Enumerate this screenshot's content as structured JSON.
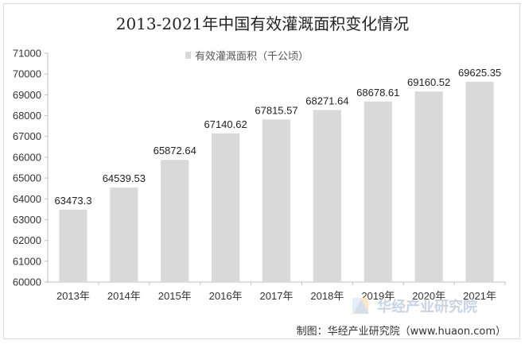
{
  "chart_data": {
    "type": "bar",
    "title": "2013-2021年中国有效灌溉面积变化情况",
    "categories": [
      "2013年",
      "2014年",
      "2015年",
      "2016年",
      "2017年",
      "2018年",
      "2019年",
      "2020年",
      "2021年"
    ],
    "series": [
      {
        "name": "有效灌溉面积（千公顷）",
        "values": [
          63473.3,
          64539.53,
          65872.64,
          67140.62,
          67815.57,
          68271.64,
          68678.61,
          69160.52,
          69625.35
        ],
        "labels": [
          "63473.3",
          "64539.53",
          "65872.64",
          "67140.62",
          "67815.57",
          "68271.64",
          "68678.61",
          "69160.52",
          "69625.35"
        ]
      }
    ],
    "yticks": [
      "60000",
      "61000",
      "62000",
      "63000",
      "64000",
      "65000",
      "66000",
      "67000",
      "68000",
      "69000",
      "70000",
      "71000"
    ],
    "ylim": [
      60000,
      71000
    ],
    "grid": false,
    "legend": "top-left",
    "bar_color": "#d9d9d9"
  },
  "footer": "制图：华经产业研究院（www.huaon.com）",
  "watermark": {
    "text": "华经产业研究院",
    "icon": "huaon-logo-icon"
  }
}
